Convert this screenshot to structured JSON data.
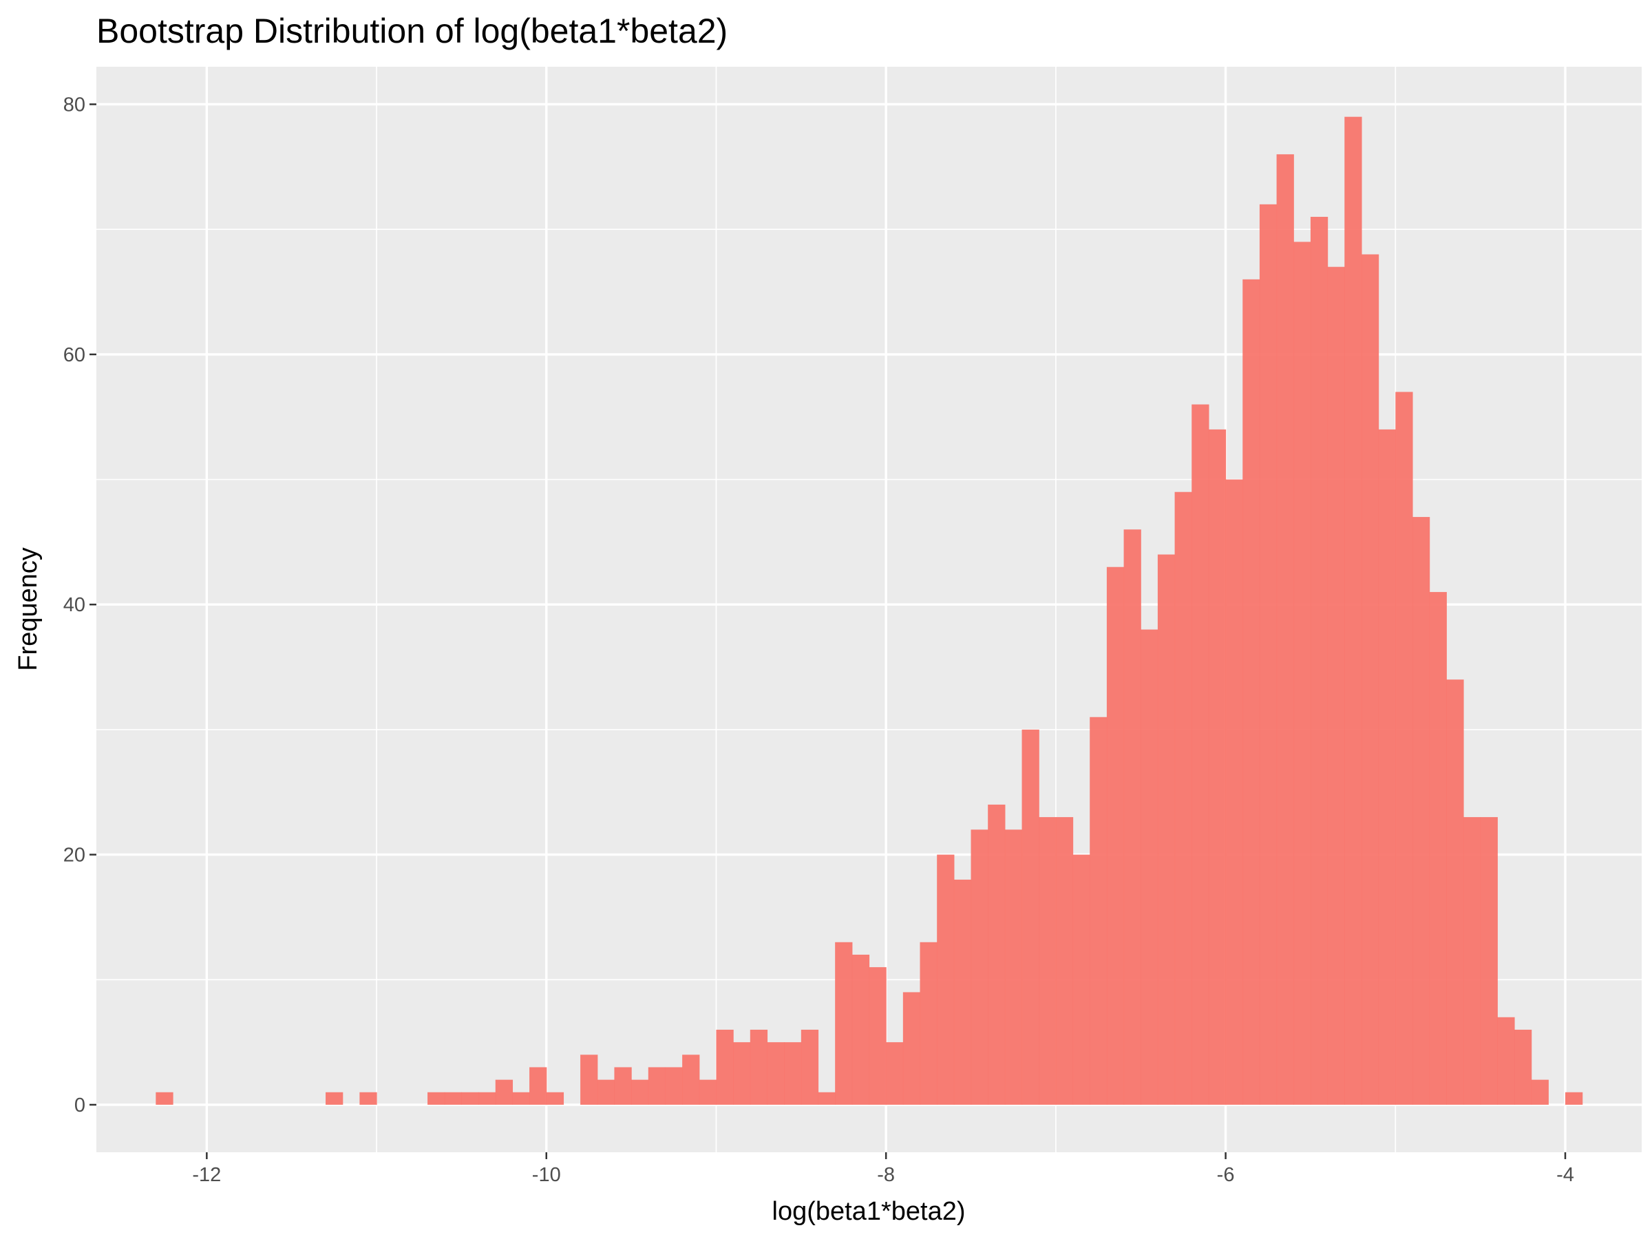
{
  "chart_data": {
    "type": "bar",
    "subtype": "histogram",
    "title": "Bootstrap Distribution of log(beta1*beta2)",
    "xlabel": "log(beta1*beta2)",
    "ylabel": "Frequency",
    "xlim": [
      -12.65,
      -3.55
    ],
    "ylim": [
      -3.8,
      83
    ],
    "xticks": [
      -12,
      -10,
      -8,
      -6,
      -4
    ],
    "xtick_labels": [
      "-12",
      "-10",
      "-8",
      "-6",
      "-4"
    ],
    "yticks": [
      0,
      20,
      40,
      60,
      80
    ],
    "ytick_labels": [
      "0",
      "20",
      "40",
      "60",
      "80"
    ],
    "grid": true,
    "legend": "none",
    "bar_color": "#f8766d",
    "panel_color": "#ebebeb",
    "bin_start": -12.3,
    "bin_width": 0.1,
    "counts": [
      1,
      0,
      0,
      0,
      0,
      0,
      0,
      0,
      0,
      0,
      1,
      0,
      1,
      0,
      0,
      0,
      1,
      1,
      1,
      1,
      2,
      1,
      3,
      1,
      0,
      4,
      2,
      3,
      2,
      3,
      3,
      4,
      2,
      6,
      5,
      6,
      5,
      5,
      6,
      1,
      13,
      12,
      11,
      5,
      9,
      13,
      20,
      18,
      22,
      24,
      22,
      30,
      23,
      23,
      20,
      31,
      43,
      46,
      38,
      44,
      49,
      56,
      54,
      50,
      66,
      72,
      76,
      69,
      71,
      67,
      79,
      68,
      54,
      57,
      47,
      41,
      34,
      23,
      23,
      7,
      6,
      2,
      0,
      1
    ]
  }
}
